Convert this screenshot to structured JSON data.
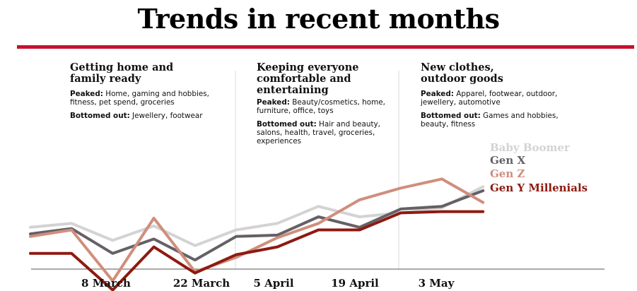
{
  "title": "Trends in recent months",
  "annotations": [
    {
      "heading_lines": [
        "Getting home and",
        "family ready"
      ],
      "peaked_label": "Peaked:",
      "peaked_lines": [
        " Home, gaming and hobbies,",
        "fitness, pet spend, groceries"
      ],
      "bottomed_label": "Bottomed out:",
      "bottomed_lines": [
        " Jewellery, footwear"
      ]
    },
    {
      "heading_lines": [
        "Keeping everyone",
        "comfortable and",
        "entertaining"
      ],
      "peaked_label": "Peaked:",
      "peaked_lines": [
        " Beauty/cosmetics, home,",
        "furniture, office, toys"
      ],
      "bottomed_label": "Bottomed out:",
      "bottomed_lines": [
        " Hair and beauty,",
        "salons, health, travel, groceries,",
        "experiences"
      ]
    },
    {
      "heading_lines": [
        "New clothes,",
        "outdoor goods"
      ],
      "peaked_label": "Peaked:",
      "peaked_lines": [
        " Apparel, footwear, outdoor,",
        "jewellery, automotive"
      ],
      "bottomed_label": "Bottomed out:",
      "bottomed_lines": [
        " Games and hobbies,",
        "beauty, fitness"
      ]
    }
  ],
  "chart_data": {
    "type": "line",
    "x_tick_labels": [
      "8 March",
      "22 March",
      "5 April",
      "19 April",
      "3 May"
    ],
    "y_range": [
      0,
      100
    ],
    "grid": false,
    "x": [
      0,
      1,
      2,
      3,
      4,
      5,
      6,
      7,
      8,
      9,
      10,
      11
    ],
    "series": [
      {
        "name": "Baby Boomer",
        "color": "#d3d3d3",
        "values": [
          32,
          35,
          22,
          33,
          18,
          30,
          35,
          48,
          40,
          43,
          47,
          63
        ]
      },
      {
        "name": "Gen X",
        "color": "#656065",
        "values": [
          27,
          31,
          12,
          23,
          7,
          25,
          26,
          40,
          32,
          46,
          48,
          60
        ]
      },
      {
        "name": "Gen Z",
        "color": "#d08e7c",
        "values": [
          25,
          30,
          -9,
          39,
          -2,
          9,
          24,
          35,
          53,
          62,
          69,
          51
        ]
      },
      {
        "name": "Gen Y Millenials",
        "color": "#8e1a10",
        "values": [
          12,
          12,
          -16,
          17,
          -3,
          11,
          17,
          30,
          30,
          43,
          44,
          44
        ]
      }
    ]
  }
}
